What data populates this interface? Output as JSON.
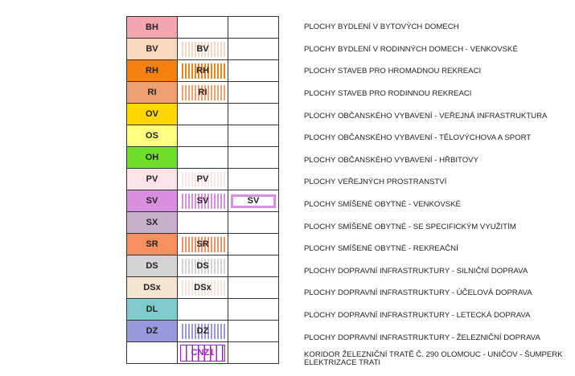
{
  "rows": [
    {
      "code": "BH",
      "color": "#f4a6b0",
      "hatch": false,
      "desc": "PLOCHY BYDLENÍ V BYTOVÝCH DOMECH"
    },
    {
      "code": "BV",
      "color": "#fbd8c0",
      "hatch": true,
      "desc": "PLOCHY BYDLENÍ V RODINNÝCH DOMECH - VENKOVSKÉ"
    },
    {
      "code": "RH",
      "color": "#f5820f",
      "hatch": true,
      "desc": "PLOCHY STAVEB PRO HROMADNOU REKREACI"
    },
    {
      "code": "RI",
      "color": "#f0a070",
      "hatch": true,
      "desc": "PLOCHY STAVEB PRO RODINNOU REKREACI"
    },
    {
      "code": "OV",
      "color": "#ffd700",
      "hatch": false,
      "desc": "PLOCHY OBČANSKÉHO VYBAVENÍ - VEŘEJNÁ INFRASTRUKTURA"
    },
    {
      "code": "OS",
      "color": "#ffff80",
      "hatch": false,
      "desc": "PLOCHY OBČANSKÉHO VYBAVENÍ - TĚLOVÝCHOVA A SPORT"
    },
    {
      "code": "OH",
      "color": "#6ee02a",
      "hatch": false,
      "desc": "PLOCHY OBČANSKÉHO VYBAVENÍ - HŘBITOVY"
    },
    {
      "code": "PV",
      "color": "#fde4e8",
      "hatch": true,
      "desc": "PLOCHY VEŘEJNÝCH PROSTRANSTVÍ"
    },
    {
      "code": "SV",
      "color": "#d98ee0",
      "hatch": true,
      "boxed": true,
      "desc": "PLOCHY SMÍŠENÉ OBYTNÉ - VENKOVSKÉ"
    },
    {
      "code": "SX",
      "color": "#c8b0cc",
      "hatch": false,
      "desc": "PLOCHY SMÍŠENÉ OBYTNÉ - SE SPECIFICKÝM VYUŽITÍM"
    },
    {
      "code": "SR",
      "color": "#fa9060",
      "hatch": true,
      "desc": "PLOCHY SMÍŠENÉ OBYTNÉ - REKREAČNÍ"
    },
    {
      "code": "DS",
      "color": "#d4d4d4",
      "hatch": true,
      "desc": "PLOCHY DOPRAVNÍ INFRASTRUKTURY - SILNIČNÍ DOPRAVA"
    },
    {
      "code": "DSx",
      "color": "#f4e4d0",
      "hatch": true,
      "desc": "PLOCHY DOPRAVNÍ INFRASTRUKTURY - ÚČELOVÁ DOPRAVA"
    },
    {
      "code": "DL",
      "color": "#80cccc",
      "hatch": false,
      "desc": "PLOCHY DOPRAVNÍ INFRASTRUKTURY - LETECKÁ DOPRAVA"
    },
    {
      "code": "DZ",
      "color": "#9a98dc",
      "hatch": true,
      "desc": "PLOCHY DOPRAVNÍ INFRASTRUKTURY - ŽELEZNIČNÍ DOPRAVA"
    }
  ],
  "corridor": {
    "code": "CNZ1",
    "color": "#a020c0",
    "desc": "KORIDOR ŽELEZNIČNÍ TRATĚ Č. 290 OLOMOUC - UNIČOV - ŠUMPERK\nELEKTRIZACE TRATI"
  }
}
